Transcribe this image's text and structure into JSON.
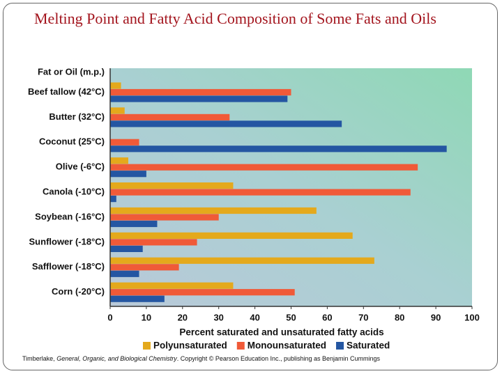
{
  "chart_data": {
    "type": "hbar",
    "title": "Melting Point and Fatty Acid Composition of Some Fats and Oils",
    "y_axis_title": "Fat or Oil (m.p.)",
    "x_axis_title": "Percent saturated and unsaturated fatty acids",
    "categories": [
      "Beef tallow (42°C)",
      "Butter (32°C)",
      "Coconut (25°C)",
      "Olive (-6°C)",
      "Canola (-10°C)",
      "Soybean (-16°C)",
      "Sunflower (-18°C)",
      "Safflower (-18°C)",
      "Corn (-20°C)"
    ],
    "series": [
      {
        "name": "Polyunsaturated",
        "color": "#e4a91c",
        "values": [
          3,
          4,
          0,
          5,
          34,
          57,
          67,
          73,
          34
        ]
      },
      {
        "name": "Monounsaturated",
        "color": "#f05a38",
        "values": [
          50,
          33,
          8,
          85,
          83,
          30,
          24,
          19,
          51
        ]
      },
      {
        "name": "Saturated",
        "color": "#2456a2",
        "values": [
          49,
          64,
          93,
          10,
          1.7,
          13,
          9,
          8,
          15
        ]
      }
    ],
    "xlim": [
      0,
      100
    ],
    "xticks": [
      0,
      10,
      20,
      30,
      40,
      50,
      60,
      70,
      80,
      90,
      100
    ],
    "credit": [
      "Timberlake, ",
      "General, Organic, and Biological Chemistry",
      ". Copyright © Pearson Education Inc., publishing as Benjamin Cummings"
    ]
  }
}
